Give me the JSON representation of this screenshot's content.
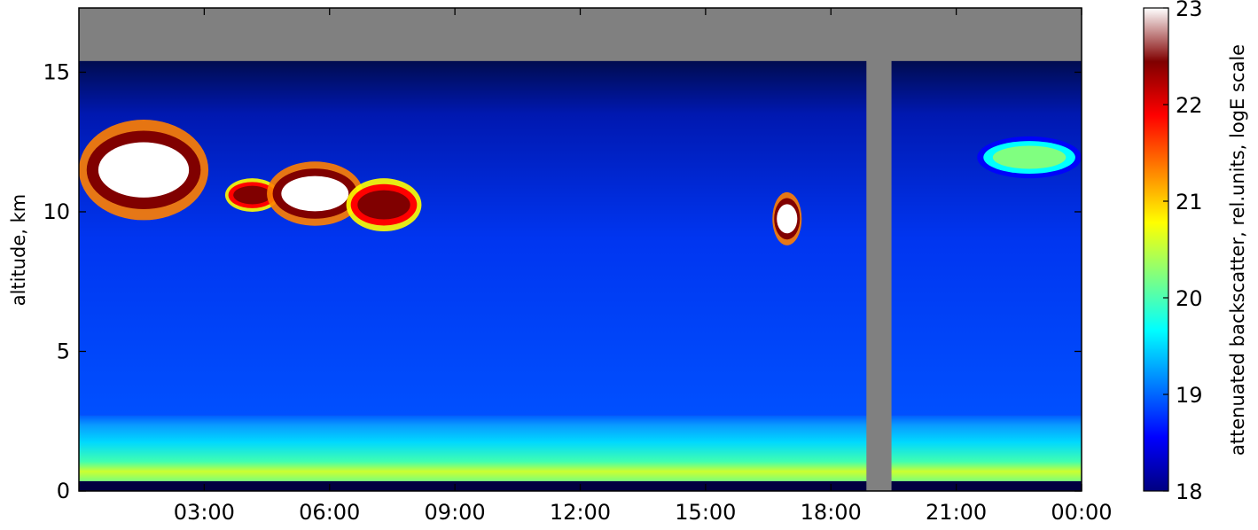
{
  "chart_data": {
    "type": "heatmap",
    "title": "",
    "ylabel": "altitude, km",
    "xlabel": "",
    "x_range_hours": [
      0,
      24
    ],
    "ylim": [
      0,
      17.3
    ],
    "x_tick_labels": [
      "03:00",
      "06:00",
      "09:00",
      "12:00",
      "15:00",
      "18:00",
      "21:00",
      "00:00"
    ],
    "x_tick_hours": [
      3,
      6,
      9,
      12,
      15,
      18,
      21,
      24
    ],
    "y_ticks": [
      0,
      5,
      10,
      15
    ],
    "colorbar": {
      "label": "attenuated backscatter, rel.units, logE scale",
      "ticks": [
        18,
        19,
        20,
        21,
        22,
        23
      ],
      "range": [
        18,
        23
      ],
      "colors": [
        "#000080",
        "#0000ff",
        "#0080ff",
        "#00ffff",
        "#80ff80",
        "#ffff00",
        "#ff8000",
        "#ff0000",
        "#800000",
        "#ffffff"
      ]
    },
    "missing_color": "#808080",
    "background_signal_top_km": 15.4,
    "boundary_layer": {
      "top_km": 2.7,
      "level": 19.8
    },
    "surface_layer_km": 0.35,
    "clouds": [
      {
        "start_hour": 0.0,
        "end_hour": 3.1,
        "base_km": 9.7,
        "top_km": 13.3,
        "level": 23
      },
      {
        "start_hour": 3.5,
        "end_hour": 4.8,
        "base_km": 10.0,
        "top_km": 11.2,
        "level": 22.5
      },
      {
        "start_hour": 4.5,
        "end_hour": 6.8,
        "base_km": 9.5,
        "top_km": 11.8,
        "level": 23
      },
      {
        "start_hour": 6.4,
        "end_hour": 8.2,
        "base_km": 9.3,
        "top_km": 11.2,
        "level": 22.5
      },
      {
        "start_hour": 16.6,
        "end_hour": 17.3,
        "base_km": 8.8,
        "top_km": 10.7,
        "level": 23
      },
      {
        "start_hour": 21.5,
        "end_hour": 24.0,
        "base_km": 11.2,
        "top_km": 12.7,
        "level": 20.3
      }
    ],
    "data_gaps_hours": [
      {
        "start": 18.85,
        "end": 19.45
      }
    ]
  }
}
